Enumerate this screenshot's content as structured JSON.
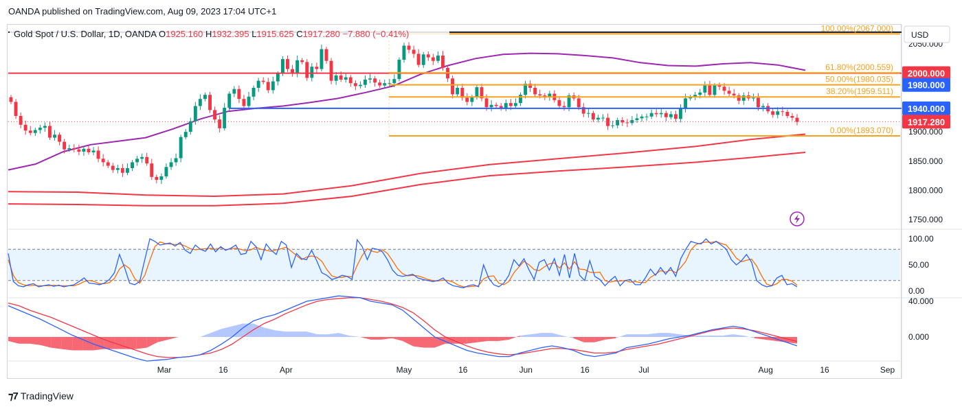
{
  "header": {
    "publisher_line": "OANDA published on TradingView.com, Aug 09, 2023 17:04 UTC+1"
  },
  "legend": {
    "symbol": "Gold Spot / U.S. Dollar, 1D, OANDA",
    "open_label": "O",
    "open": "1925.160",
    "high_label": "H",
    "high": "1932.395",
    "low_label": "L",
    "low": "1915.625",
    "close_label": "C",
    "close": "1917.280",
    "change": "−7.880 (−0.41%)"
  },
  "currency_button": "USD",
  "colors": {
    "up": "#089981",
    "down": "#f23645",
    "fib": "#f7a21b",
    "ma_purple": "#9c27b0",
    "ma_red": "#f23645",
    "blue_line": "#2962ff",
    "red_level": "#f23645"
  },
  "chart_data": {
    "type": "candlestick",
    "title": "Gold Spot / U.S. Dollar, 1D, OANDA",
    "price_range": [
      1735,
      2078
    ],
    "y_ticks": [
      "2050.000",
      "1900.000",
      "1850.000",
      "1800.000",
      "1750.000"
    ],
    "y_tick_values": [
      2050,
      1900,
      1850,
      1800,
      1750
    ],
    "x_ticks": [
      "Mar",
      "16",
      "Apr",
      "May",
      "16",
      "Jun",
      "16",
      "Jul",
      "Aug",
      "16",
      "Sep"
    ],
    "x_tick_dates": [
      "2023-03-01",
      "2023-03-16",
      "2023-04-01",
      "2023-05-01",
      "2023-05-16",
      "2023-06-01",
      "2023-06-16",
      "2023-07-01",
      "2023-08-01",
      "2023-08-16",
      "2023-09-01"
    ],
    "ohlc_close": [
      1951,
      1927,
      1912,
      1902,
      1898,
      1903,
      1907,
      1910,
      1890,
      1895,
      1883,
      1870,
      1872,
      1870,
      1866,
      1871,
      1865,
      1868,
      1854,
      1848,
      1842,
      1835,
      1838,
      1830,
      1838,
      1848,
      1854,
      1857,
      1846,
      1823,
      1818,
      1824,
      1840,
      1848,
      1855,
      1891,
      1900,
      1918,
      1944,
      1956,
      1963,
      1937,
      1921,
      1906,
      1941,
      1965,
      1973,
      1956,
      1944,
      1960,
      1975,
      1987,
      1985,
      1971,
      1986,
      1999,
      2024,
      2007,
      2000,
      2022,
      2019,
      1992,
      2011,
      2007,
      2041,
      2021,
      1987,
      1996,
      1989,
      1993,
      1983,
      1978,
      1980,
      1989,
      1991,
      1984,
      1979,
      1983,
      1983,
      1990,
      2023,
      2047,
      2040,
      2033,
      2014,
      2032,
      2027,
      2021,
      2030,
      2009,
      1991,
      1964,
      1975,
      1958,
      1951,
      1959,
      1976,
      1957,
      1942,
      1946,
      1944,
      1941,
      1949,
      1944,
      1949,
      1963,
      1982,
      1975,
      1964,
      1962,
      1960,
      1965,
      1954,
      1944,
      1942,
      1962,
      1957,
      1942,
      1931,
      1932,
      1921,
      1924,
      1924,
      1910,
      1911,
      1920,
      1916,
      1915,
      1920,
      1923,
      1926,
      1926,
      1932,
      1930,
      1932,
      1925,
      1930,
      1922,
      1940,
      1957,
      1959,
      1963,
      1967,
      1979,
      1963,
      1979,
      1977,
      1970,
      1965,
      1962,
      1953,
      1962,
      1957,
      1958,
      1942,
      1944,
      1935,
      1929,
      1935,
      1934,
      1927,
      1924,
      1917
    ],
    "fibonacci": [
      {
        "label": "100.00%(2067.000)",
        "value": 2067
      },
      {
        "label": "61.80%(2000.559)",
        "value": 2000.559
      },
      {
        "label": "50.00%(1980.035)",
        "value": 1980.035
      },
      {
        "label": "38.20%(1959.511)",
        "value": 1959.511
      },
      {
        "label": "0.00%(1893.070)",
        "value": 1893.07
      }
    ],
    "price_labels": [
      {
        "text": "2000.000",
        "value": 2000,
        "color": "#f23645"
      },
      {
        "text": "1980.000",
        "value": 1980,
        "color": "#2962ff"
      },
      {
        "text": "1940.000",
        "value": 1940,
        "color": "#2962ff"
      },
      {
        "text": "1917.280",
        "value": 1917.28,
        "color": "#f23645"
      }
    ],
    "horizontal_levels": [
      {
        "name": "black-top-line",
        "value": 2070,
        "color": "#131722"
      },
      {
        "name": "red-2000-line",
        "value": 2000,
        "color": "#f23645"
      },
      {
        "name": "blue-1940-line",
        "value": 1940,
        "color": "#2962ff"
      }
    ],
    "ma_purple": [
      [
        0,
        1835
      ],
      [
        40,
        1845
      ],
      [
        80,
        1866
      ],
      [
        120,
        1878
      ],
      [
        160,
        1884
      ],
      [
        200,
        1890
      ],
      [
        240,
        1905
      ],
      [
        280,
        1922
      ],
      [
        320,
        1935
      ],
      [
        360,
        1940
      ],
      [
        400,
        1944
      ],
      [
        440,
        1950
      ],
      [
        480,
        1957
      ],
      [
        520,
        1967
      ],
      [
        560,
        1978
      ],
      [
        600,
        1998
      ],
      [
        640,
        2013
      ],
      [
        680,
        2025
      ],
      [
        720,
        2032
      ],
      [
        760,
        2034
      ],
      [
        800,
        2033
      ],
      [
        840,
        2030
      ],
      [
        880,
        2026
      ],
      [
        920,
        2018
      ],
      [
        960,
        2013
      ],
      [
        1000,
        2012
      ],
      [
        1040,
        2016
      ],
      [
        1080,
        2018
      ],
      [
        1120,
        2014
      ],
      [
        1160,
        2005
      ]
    ],
    "ma_red_short": [
      [
        0,
        1798
      ],
      [
        100,
        1797
      ],
      [
        200,
        1792
      ],
      [
        300,
        1790
      ],
      [
        400,
        1794
      ],
      [
        500,
        1808
      ],
      [
        600,
        1829
      ],
      [
        700,
        1844
      ],
      [
        800,
        1854
      ],
      [
        900,
        1864
      ],
      [
        1000,
        1875
      ],
      [
        1080,
        1887
      ],
      [
        1160,
        1896
      ]
    ],
    "ma_red_long": [
      [
        0,
        1777
      ],
      [
        100,
        1776
      ],
      [
        200,
        1774
      ],
      [
        300,
        1774
      ],
      [
        400,
        1778
      ],
      [
        500,
        1790
      ],
      [
        600,
        1810
      ],
      [
        700,
        1825
      ],
      [
        800,
        1833
      ],
      [
        900,
        1840
      ],
      [
        1000,
        1848
      ],
      [
        1080,
        1856
      ],
      [
        1160,
        1865
      ]
    ],
    "stochastic": {
      "y_ticks": [
        "100.00",
        "50.00",
        "0.00"
      ],
      "y_tick_values": [
        100,
        50,
        0
      ],
      "upper_band": 80,
      "lower_band": 20,
      "k": [
        72,
        18,
        10,
        8,
        12,
        14,
        8,
        10,
        12,
        9,
        11,
        8,
        10,
        12,
        18,
        25,
        15,
        14,
        12,
        15,
        22,
        35,
        70,
        45,
        15,
        12,
        18,
        60,
        100,
        95,
        88,
        90,
        92,
        86,
        93,
        78,
        72,
        88,
        80,
        76,
        90,
        75,
        85,
        78,
        82,
        88,
        70,
        72,
        95,
        85,
        60,
        90,
        78,
        70,
        95,
        88,
        45,
        72,
        62,
        60,
        78,
        58,
        35,
        30,
        22,
        25,
        30,
        28,
        22,
        98,
        85,
        60,
        82,
        80,
        75,
        60,
        40,
        30,
        28,
        30,
        32,
        25,
        22,
        20,
        18,
        20,
        25,
        15,
        10,
        8,
        6,
        10,
        12,
        8,
        50,
        25,
        12,
        8,
        15,
        30,
        60,
        48,
        62,
        40,
        22,
        55,
        60,
        40,
        62,
        30,
        70,
        25,
        72,
        30,
        20,
        58,
        28,
        22,
        10,
        20,
        28,
        10,
        20,
        22,
        12,
        12,
        25,
        42,
        30,
        45,
        32,
        45,
        28,
        62,
        80,
        95,
        92,
        90,
        100,
        90,
        95,
        88,
        80,
        60,
        50,
        58,
        70,
        55,
        20,
        12,
        8,
        10,
        25,
        30,
        12,
        14,
        8
      ],
      "d": [
        60,
        30,
        16,
        12,
        10,
        11,
        10,
        10,
        10,
        11,
        10,
        10,
        10,
        10,
        13,
        18,
        20,
        18,
        14,
        14,
        16,
        24,
        42,
        50,
        43,
        24,
        15,
        30,
        59,
        85,
        94,
        91,
        90,
        89,
        90,
        86,
        81,
        79,
        80,
        81,
        82,
        80,
        83,
        79,
        81,
        82,
        80,
        77,
        79,
        84,
        80,
        78,
        76,
        79,
        81,
        84,
        76,
        68,
        60,
        65,
        67,
        65,
        57,
        41,
        29,
        26,
        26,
        28,
        27,
        49,
        68,
        81,
        76,
        74,
        79,
        72,
        58,
        43,
        33,
        29,
        30,
        29,
        26,
        22,
        20,
        19,
        21,
        20,
        17,
        11,
        8,
        8,
        9,
        10,
        23,
        28,
        29,
        15,
        12,
        18,
        35,
        46,
        57,
        50,
        41,
        39,
        46,
        52,
        54,
        44,
        54,
        42,
        56,
        42,
        41,
        36,
        35,
        36,
        20,
        17,
        19,
        19,
        20,
        17,
        18,
        16,
        16,
        26,
        32,
        39,
        36,
        40,
        35,
        45,
        57,
        79,
        89,
        92,
        94,
        93,
        95,
        91,
        88,
        76,
        63,
        56,
        59,
        61,
        48,
        29,
        13,
        10,
        14,
        22,
        22,
        19,
        11
      ]
    },
    "macd": {
      "y_ticks": [
        "40.000",
        "0.000"
      ],
      "y_tick_values": [
        40,
        0
      ],
      "macd_line": [
        35,
        30,
        25,
        20,
        14,
        8,
        2,
        -3,
        -8,
        -12,
        -16,
        -20,
        -24,
        -27,
        -26,
        -25,
        -23,
        -22,
        -20,
        -15,
        -8,
        0,
        10,
        18,
        22,
        25,
        30,
        35,
        40,
        42,
        44,
        46,
        45,
        44,
        40,
        38,
        36,
        30,
        20,
        10,
        0,
        -5,
        -10,
        -15,
        -18,
        -20,
        -22,
        -22,
        -18,
        -15,
        -12,
        -10,
        -12,
        -15,
        -20,
        -22,
        -20,
        -18,
        -12,
        -10,
        -8,
        -5,
        -2,
        0,
        2,
        5,
        8,
        10,
        12,
        10,
        6,
        2,
        -2,
        -6,
        -10
      ],
      "signal_line": [
        38,
        35,
        30,
        26,
        22,
        17,
        12,
        7,
        2,
        -3,
        -7,
        -11,
        -15,
        -19,
        -22,
        -23,
        -23,
        -22,
        -20,
        -18,
        -14,
        -8,
        0,
        8,
        15,
        20,
        26,
        31,
        36,
        40,
        42,
        43,
        44,
        44,
        42,
        40,
        37,
        33,
        27,
        18,
        8,
        0,
        -5,
        -10,
        -14,
        -17,
        -19,
        -20,
        -19,
        -17,
        -15,
        -13,
        -13,
        -14,
        -16,
        -18,
        -18,
        -17,
        -14,
        -12,
        -10,
        -8,
        -5,
        -2,
        1,
        4,
        7,
        9,
        10,
        9,
        7,
        4,
        1,
        -2,
        -5
      ]
    }
  }
}
